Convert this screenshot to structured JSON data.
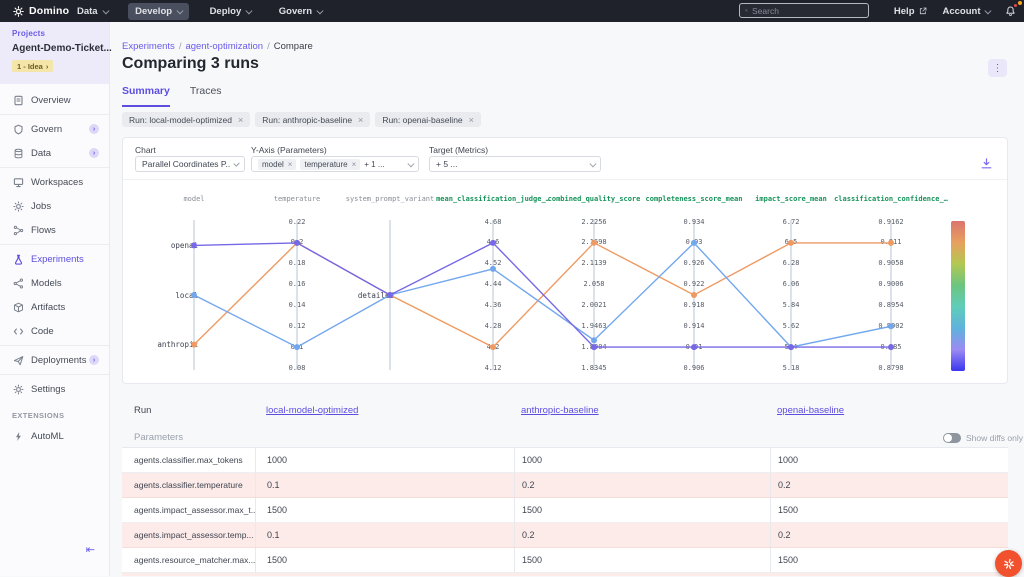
{
  "navbar": {
    "brand": "Domino",
    "menus": [
      {
        "label": "Data"
      },
      {
        "label": "Develop",
        "active": true
      },
      {
        "label": "Deploy"
      },
      {
        "label": "Govern"
      }
    ],
    "search_placeholder": "Search",
    "help_label": "Help",
    "account_label": "Account"
  },
  "sidebar": {
    "projects_label": "Projects",
    "project_name": "Agent-Demo-Ticket...",
    "stage_badge": "1 - Idea",
    "stage_chevron": "›",
    "items": [
      {
        "label": "Overview",
        "icon": "document-icon"
      },
      {
        "label": "Govern",
        "icon": "shield-icon",
        "badge": true,
        "sep_before": true
      },
      {
        "label": "Data",
        "icon": "database-icon",
        "badge": true
      },
      {
        "label": "Workspaces",
        "icon": "monitor-icon",
        "sep_before": true
      },
      {
        "label": "Jobs",
        "icon": "sun-icon"
      },
      {
        "label": "Flows",
        "icon": "branch-icon"
      },
      {
        "label": "Experiments",
        "icon": "flask-icon",
        "active": true,
        "sep_before": true
      },
      {
        "label": "Models",
        "icon": "nodes-icon"
      },
      {
        "label": "Artifacts",
        "icon": "box-icon"
      },
      {
        "label": "Code",
        "icon": "code-icon"
      },
      {
        "label": "Deployments",
        "icon": "plane-icon",
        "badge": true,
        "sep_before": true
      },
      {
        "label": "Settings",
        "icon": "gear-icon",
        "sep_before": true
      }
    ],
    "extensions_label": "EXTENSIONS",
    "automl_label": "AutoML"
  },
  "breadcrumb": {
    "sep": "/",
    "items": [
      "Experiments",
      "agent-optimization",
      "Compare"
    ]
  },
  "page": {
    "title": "Comparing 3 runs",
    "tabs": [
      {
        "label": "Summary",
        "active": true
      },
      {
        "label": "Traces"
      }
    ],
    "run_chips": [
      "Run: local-model-optimized",
      "Run: anthropic-baseline",
      "Run: openai-baseline"
    ]
  },
  "controls": {
    "chart_label": "Chart",
    "chart_value": "Parallel Coordinates P...",
    "yaxis_label": "Y-Axis (Parameters)",
    "yaxis_chips": [
      "model",
      "temperature"
    ],
    "yaxis_more": "+ 1 ...",
    "target_label": "Target (Metrics)",
    "target_value": "+ 5 ..."
  },
  "chart_data": {
    "type": "parallel_coordinates",
    "axes": [
      {
        "name": "model",
        "kind": "param",
        "type": "category",
        "categories": {
          "openai": 0.16,
          "local": 0.5,
          "anthropic": 0.84
        }
      },
      {
        "name": "temperature",
        "kind": "param",
        "type": "numeric",
        "ticks": [
          0.22,
          0.2,
          0.18,
          0.16,
          0.14,
          0.12,
          0.1,
          0.08
        ]
      },
      {
        "name": "system_prompt_variant",
        "kind": "param",
        "type": "category",
        "categories": {
          "detailed": 0.5
        }
      },
      {
        "name": "mean_classification_judge_…",
        "kind": "metric",
        "type": "numeric",
        "ticks": [
          4.68,
          4.6,
          4.52,
          4.44,
          4.36,
          4.28,
          4.2,
          4.12
        ]
      },
      {
        "name": "combined_quality_score",
        "kind": "metric",
        "type": "numeric",
        "ticks": [
          2.2256,
          2.1698,
          2.1139,
          2.058,
          2.0021,
          1.9463,
          1.8904,
          1.8345
        ]
      },
      {
        "name": "completeness_score_mean",
        "kind": "metric",
        "type": "numeric",
        "ticks": [
          0.934,
          0.93,
          0.926,
          0.922,
          0.918,
          0.914,
          0.91,
          0.906
        ]
      },
      {
        "name": "impact_score_mean",
        "kind": "metric",
        "type": "numeric",
        "ticks": [
          6.72,
          6.5,
          6.28,
          6.06,
          5.84,
          5.62,
          5.4,
          5.18
        ]
      },
      {
        "name": "classification_confidence_…",
        "kind": "metric",
        "type": "numeric",
        "ticks": [
          0.9162,
          0.911,
          0.9058,
          0.9006,
          0.8954,
          0.8902,
          0.885,
          0.8798
        ]
      }
    ],
    "series": [
      {
        "name": "openai-baseline",
        "color": "#7668e6",
        "values": [
          "openai",
          0.2,
          "detailed",
          4.6,
          1.8904,
          0.91,
          5.4,
          0.885
        ]
      },
      {
        "name": "anthropic-baseline",
        "color": "#ef9a63",
        "values": [
          "anthropic",
          0.2,
          "detailed",
          4.2,
          2.1698,
          0.92,
          6.5,
          0.911
        ]
      },
      {
        "name": "local-model-optimized",
        "color": "#72a7ee",
        "values": [
          "local",
          0.1,
          "detailed",
          4.5,
          1.909,
          0.93,
          5.4,
          0.8902
        ]
      }
    ],
    "colorbar": [
      "#d9756f",
      "#e8a05e",
      "#b3c853",
      "#6cc57f",
      "#5fcdb9",
      "#5fb2dd",
      "#9b8bf2",
      "#3b36ef"
    ]
  },
  "comparison": {
    "run_label": "Run",
    "runs": [
      "local-model-optimized",
      "anthropic-baseline",
      "openai-baseline"
    ],
    "parameters_label": "Parameters",
    "show_diffs_label": "Show diffs only",
    "rows": [
      {
        "name": "agents.classifier.max_tokens",
        "values": [
          "1000",
          "1000",
          "1000"
        ],
        "diff": false
      },
      {
        "name": "agents.classifier.temperature",
        "values": [
          "0.1",
          "0.2",
          "0.2"
        ],
        "diff": true
      },
      {
        "name": "agents.impact_assessor.max_t...",
        "values": [
          "1500",
          "1500",
          "1500"
        ],
        "diff": false
      },
      {
        "name": "agents.impact_assessor.temp...",
        "values": [
          "0.1",
          "0.2",
          "0.2"
        ],
        "diff": true
      },
      {
        "name": "agents.resource_matcher.max...",
        "values": [
          "1500",
          "1500",
          "1500"
        ],
        "diff": false
      }
    ]
  }
}
